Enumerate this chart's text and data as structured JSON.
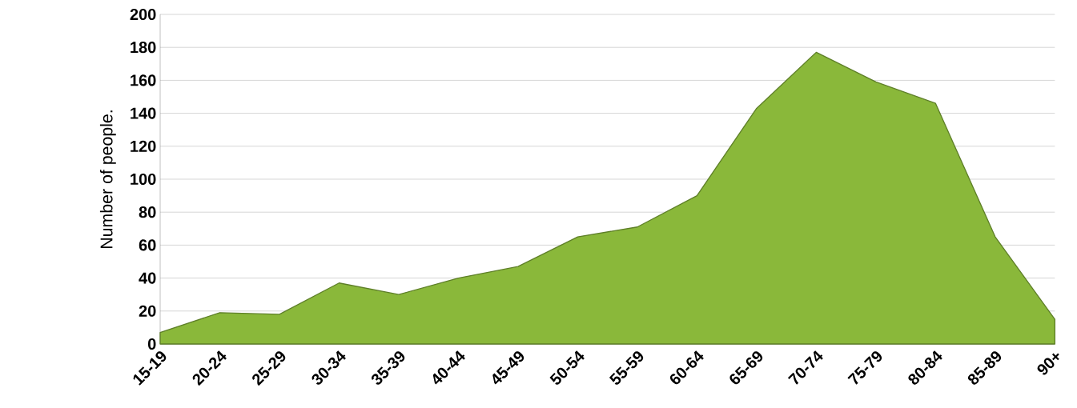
{
  "chart_data": {
    "type": "area",
    "ylabel": "Number of people.",
    "categories": [
      "15-19",
      "20-24",
      "25-29",
      "30-34",
      "35-39",
      "40-44",
      "45-49",
      "50-54",
      "55-59",
      "60-64",
      "65-69",
      "70-74",
      "75-79",
      "80-84",
      "85-89",
      "90+"
    ],
    "values": [
      7,
      19,
      18,
      37,
      30,
      40,
      47,
      65,
      71,
      90,
      143,
      177,
      159,
      146,
      65,
      15
    ],
    "color": "#8ab83a",
    "ylim": [
      0,
      200
    ],
    "yticks": [
      0,
      20,
      40,
      60,
      80,
      100,
      120,
      140,
      160,
      180,
      200
    ],
    "grid": "y"
  }
}
